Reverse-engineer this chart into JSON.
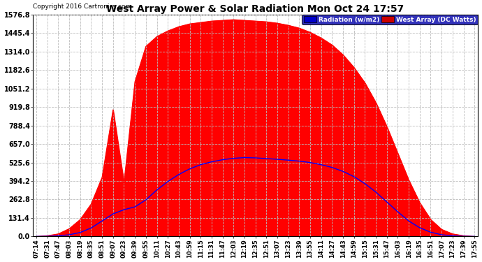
{
  "title": "West Array Power & Solar Radiation Mon Oct 24 17:57",
  "copyright": "Copyright 2016 Cartronics.com",
  "legend_radiation": "Radiation (w/m2)",
  "legend_west": "West Array (DC Watts)",
  "ymax": 1576.8,
  "ymin": 0.0,
  "ytick_interval": 131.4,
  "radiation_color": "#ff0000",
  "radiation_fill": "#ff0000",
  "west_color": "#0000ff",
  "background_color": "#ffffff",
  "grid_color": "#bbbbbb",
  "time_labels": [
    "07:14",
    "07:31",
    "07:47",
    "08:03",
    "08:19",
    "08:35",
    "08:51",
    "09:07",
    "09:23",
    "09:39",
    "09:55",
    "10:11",
    "10:27",
    "10:43",
    "10:59",
    "11:15",
    "11:31",
    "11:47",
    "12:03",
    "12:19",
    "12:35",
    "12:51",
    "13:07",
    "13:23",
    "13:39",
    "13:55",
    "14:11",
    "14:27",
    "14:43",
    "14:59",
    "15:15",
    "15:31",
    "15:47",
    "16:03",
    "16:19",
    "16:35",
    "16:51",
    "17:07",
    "17:23",
    "17:39",
    "17:55"
  ],
  "radiation_values": [
    0,
    5,
    18,
    55,
    120,
    230,
    420,
    900,
    380,
    1100,
    1350,
    1420,
    1460,
    1490,
    1510,
    1520,
    1530,
    1535,
    1540,
    1535,
    1530,
    1525,
    1515,
    1500,
    1480,
    1450,
    1410,
    1360,
    1290,
    1200,
    1090,
    950,
    780,
    590,
    400,
    240,
    120,
    50,
    18,
    5,
    0
  ],
  "west_values": [
    0,
    1,
    4,
    12,
    28,
    60,
    110,
    160,
    190,
    210,
    260,
    330,
    390,
    440,
    480,
    510,
    530,
    545,
    555,
    560,
    558,
    553,
    548,
    542,
    535,
    525,
    510,
    490,
    462,
    425,
    375,
    315,
    245,
    175,
    110,
    62,
    30,
    12,
    4,
    1,
    0
  ],
  "morning_spike_indices": [
    7,
    8,
    9
  ],
  "morning_spike_rad": [
    900,
    380,
    1100
  ]
}
